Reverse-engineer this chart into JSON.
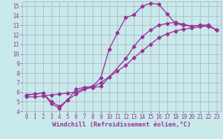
{
  "background_color": "#c8eaea",
  "grid_color": "#aaaacc",
  "line_color": "#993399",
  "marker": "D",
  "markersize": 2.5,
  "linewidth": 1.0,
  "xlabel": "Windchill (Refroidissement éolien,°C)",
  "xlabel_fontsize": 6.5,
  "xlim": [
    -0.5,
    23.5
  ],
  "ylim": [
    4,
    15.5
  ],
  "xticks": [
    0,
    1,
    2,
    3,
    4,
    5,
    6,
    7,
    8,
    9,
    10,
    11,
    12,
    13,
    14,
    15,
    16,
    17,
    18,
    19,
    20,
    21,
    22,
    23
  ],
  "yticks": [
    4,
    5,
    6,
    7,
    8,
    9,
    10,
    11,
    12,
    13,
    14,
    15
  ],
  "tick_fontsize": 5.5,
  "curve1_x": [
    0,
    1,
    2,
    3,
    4,
    5,
    6,
    7,
    8,
    9,
    10,
    11,
    12,
    13,
    14,
    15,
    16,
    17,
    18,
    19,
    20,
    21,
    22,
    23
  ],
  "curve1_y": [
    5.7,
    5.8,
    5.9,
    4.8,
    4.3,
    5.2,
    6.3,
    6.5,
    6.6,
    7.5,
    10.5,
    12.2,
    13.8,
    14.1,
    15.0,
    15.3,
    15.2,
    14.2,
    13.2,
    13.0,
    12.9,
    13.0,
    13.0,
    12.5
  ],
  "curve2_x": [
    0,
    2,
    3,
    4,
    5,
    6,
    7,
    8,
    9,
    12,
    13,
    14,
    15,
    16,
    17,
    18,
    19,
    20,
    21,
    22,
    23
  ],
  "curve2_y": [
    5.7,
    5.9,
    5.0,
    4.5,
    5.2,
    5.8,
    6.3,
    6.5,
    6.6,
    9.5,
    10.8,
    11.8,
    12.5,
    13.0,
    13.2,
    13.3,
    13.1,
    12.9,
    13.0,
    13.0,
    12.5
  ],
  "curve3_x": [
    0,
    1,
    2,
    3,
    4,
    5,
    6,
    7,
    8,
    9,
    10,
    11,
    12,
    13,
    14,
    15,
    16,
    17,
    18,
    19,
    20,
    21,
    22,
    23
  ],
  "curve3_y": [
    5.5,
    5.5,
    5.6,
    5.7,
    5.8,
    5.9,
    6.0,
    6.4,
    6.5,
    7.0,
    7.6,
    8.2,
    8.8,
    9.6,
    10.3,
    11.0,
    11.7,
    12.1,
    12.4,
    12.6,
    12.7,
    12.85,
    12.9,
    12.5
  ]
}
